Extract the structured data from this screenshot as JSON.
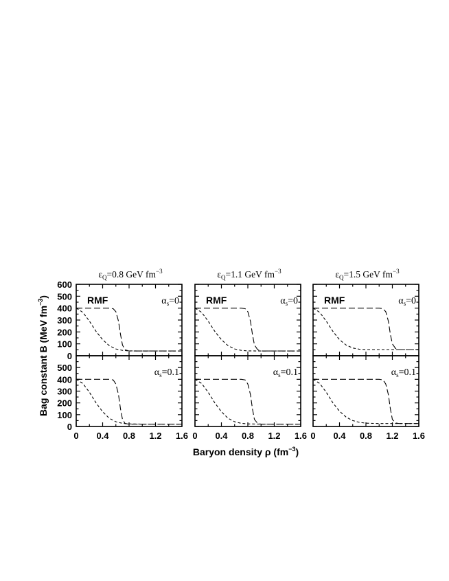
{
  "chart_data": {
    "type": "line",
    "layout": "2 rows x 3 columns of panels with shared axes",
    "xlabel": "Baryon density ρ (fm",
    "xlabel_sup": "−3",
    "xlabel_close": ")",
    "ylabel": "Bag constant B (MeV fm",
    "ylabel_sup": "−3",
    "ylabel_close": ")",
    "xlim": [
      0,
      1.6
    ],
    "ylim": [
      0,
      600
    ],
    "x_ticks": [
      "0",
      "0.4",
      "0.8",
      "1.2",
      "1.6"
    ],
    "x_tick_values": [
      0,
      0.4,
      0.8,
      1.2,
      1.6
    ],
    "y_ticks_top": [
      "0",
      "100",
      "200",
      "300",
      "400",
      "500",
      "600"
    ],
    "y_ticks_bottom": [
      "0",
      "100",
      "200",
      "300",
      "400",
      "500"
    ],
    "y_tick_values_top": [
      0,
      100,
      200,
      300,
      400,
      500,
      600
    ],
    "y_tick_values_bottom": [
      0,
      100,
      200,
      300,
      400,
      500
    ],
    "model_label": "RMF",
    "columns": [
      {
        "title_pre": "ε",
        "title_sub": "Q",
        "title_mid": "=0.8 GeV fm",
        "title_sup": "−3"
      },
      {
        "title_pre": "ε",
        "title_sub": "Q",
        "title_mid": "=1.1 GeV fm",
        "title_sup": "−3"
      },
      {
        "title_pre": "ε",
        "title_sub": "Q",
        "title_mid": "=1.5 GeV fm",
        "title_sup": "−3"
      }
    ],
    "rows": [
      {
        "alpha_pre": "α",
        "alpha_sub": "s",
        "alpha_post": "=0"
      },
      {
        "alpha_pre": "α",
        "alpha_sub": "s",
        "alpha_post": "=0.1"
      }
    ],
    "panels": [
      {
        "row": 0,
        "col": 0,
        "series": [
          {
            "style": "long-dash",
            "x": [
              0,
              0.3,
              0.5,
              0.56,
              0.6,
              0.64,
              0.67,
              0.7,
              0.74,
              0.8,
              1.0,
              1.6
            ],
            "y": [
              400,
              400,
              400,
              395,
              370,
              290,
              180,
              90,
              50,
              40,
              40,
              40
            ]
          },
          {
            "style": "short-dash",
            "x": [
              0,
              0.1,
              0.2,
              0.3,
              0.4,
              0.5,
              0.6,
              0.7,
              0.8,
              1.0,
              1.6
            ],
            "y": [
              400,
              365,
              290,
              205,
              135,
              85,
              57,
              45,
              41,
              40,
              40
            ]
          }
        ]
      },
      {
        "row": 0,
        "col": 1,
        "series": [
          {
            "style": "long-dash",
            "x": [
              0,
              0.4,
              0.7,
              0.76,
              0.8,
              0.84,
              0.87,
              0.9,
              0.95,
              1.0,
              1.2,
              1.6
            ],
            "y": [
              400,
              400,
              400,
              395,
              370,
              290,
              180,
              90,
              50,
              40,
              40,
              40
            ]
          },
          {
            "style": "short-dash",
            "x": [
              0,
              0.1,
              0.2,
              0.3,
              0.4,
              0.5,
              0.6,
              0.7,
              0.8,
              1.0,
              1.6
            ],
            "y": [
              400,
              365,
              290,
              205,
              135,
              85,
              57,
              45,
              41,
              40,
              40
            ]
          }
        ]
      },
      {
        "row": 0,
        "col": 2,
        "series": [
          {
            "style": "long-dash",
            "x": [
              0,
              0.6,
              1.0,
              1.06,
              1.1,
              1.14,
              1.17,
              1.2,
              1.25,
              1.3,
              1.6
            ],
            "y": [
              400,
              400,
              400,
              395,
              370,
              290,
              180,
              100,
              60,
              52,
              52
            ]
          },
          {
            "style": "short-dash",
            "x": [
              0,
              0.1,
              0.2,
              0.3,
              0.4,
              0.5,
              0.6,
              0.7,
              0.8,
              1.0,
              1.2,
              1.6
            ],
            "y": [
              400,
              365,
              290,
              205,
              135,
              90,
              65,
              55,
              52,
              52,
              52,
              52
            ]
          }
        ]
      },
      {
        "row": 1,
        "col": 0,
        "series": [
          {
            "style": "long-dash",
            "x": [
              0,
              0.3,
              0.5,
              0.56,
              0.6,
              0.64,
              0.67,
              0.7,
              0.74,
              0.8,
              1.0,
              1.6
            ],
            "y": [
              400,
              400,
              400,
              395,
              360,
              270,
              150,
              60,
              25,
              20,
              20,
              20
            ]
          },
          {
            "style": "short-dash",
            "x": [
              0,
              0.1,
              0.2,
              0.3,
              0.4,
              0.5,
              0.6,
              0.7,
              0.8,
              1.0,
              1.6
            ],
            "y": [
              400,
              365,
              290,
              200,
              125,
              70,
              40,
              27,
              22,
              20,
              20
            ]
          }
        ]
      },
      {
        "row": 1,
        "col": 1,
        "series": [
          {
            "style": "long-dash",
            "x": [
              0,
              0.4,
              0.7,
              0.76,
              0.8,
              0.84,
              0.87,
              0.9,
              0.95,
              1.0,
              1.2,
              1.6
            ],
            "y": [
              400,
              400,
              400,
              395,
              360,
              270,
              150,
              60,
              25,
              20,
              20,
              20
            ]
          },
          {
            "style": "short-dash",
            "x": [
              0,
              0.1,
              0.2,
              0.3,
              0.4,
              0.5,
              0.6,
              0.7,
              0.8,
              1.0,
              1.6
            ],
            "y": [
              400,
              365,
              290,
              200,
              125,
              70,
              40,
              27,
              22,
              20,
              20
            ]
          }
        ]
      },
      {
        "row": 1,
        "col": 2,
        "series": [
          {
            "style": "long-dash",
            "x": [
              0,
              0.6,
              1.0,
              1.06,
              1.1,
              1.14,
              1.17,
              1.2,
              1.25,
              1.3,
              1.6
            ],
            "y": [
              400,
              400,
              400,
              395,
              360,
              270,
              150,
              60,
              30,
              25,
              25
            ]
          },
          {
            "style": "short-dash",
            "x": [
              0,
              0.1,
              0.2,
              0.3,
              0.4,
              0.5,
              0.6,
              0.7,
              0.8,
              1.0,
              1.2,
              1.6
            ],
            "y": [
              400,
              365,
              290,
              200,
              130,
              80,
              50,
              35,
              28,
              25,
              25,
              25
            ]
          }
        ]
      }
    ]
  }
}
